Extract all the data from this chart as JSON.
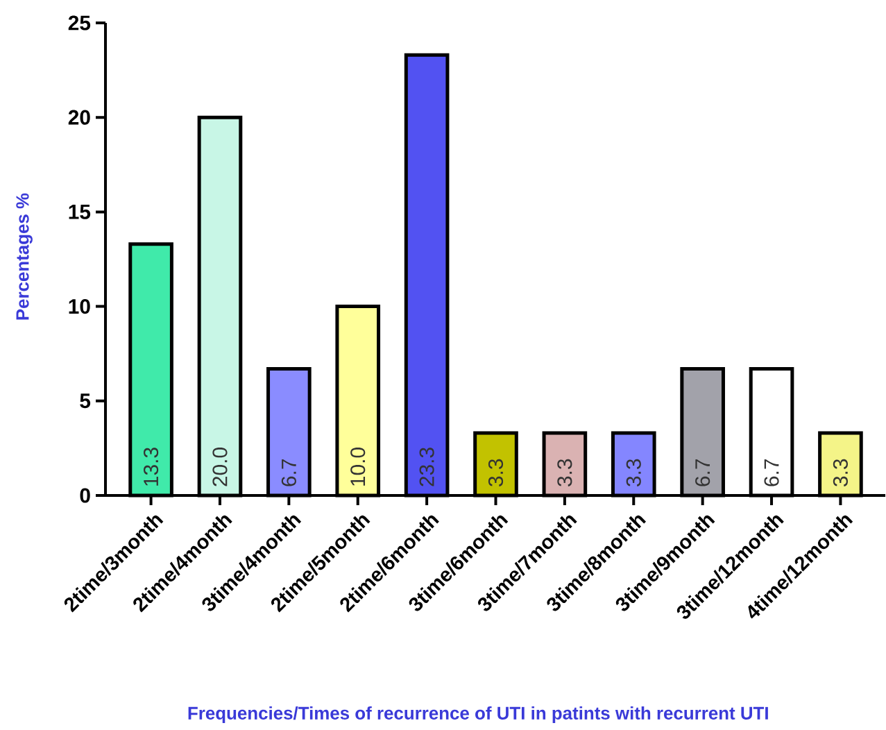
{
  "chart_data": {
    "type": "bar",
    "xlabel": "Frequencies/Times of recurrence of UTI in patints with recurrent UTI",
    "ylabel": "Percentages %",
    "categories": [
      "2time/3month",
      "2time/4month",
      "3time/4month",
      "2time/5month",
      "2time/6month",
      "3time/6month",
      "3time/7month",
      "3time/8month",
      "3time/9month",
      "3time/12month",
      "4time/12month"
    ],
    "values": [
      13.3,
      20.0,
      6.7,
      10.0,
      23.3,
      3.3,
      3.3,
      3.3,
      6.7,
      6.7,
      3.3
    ],
    "value_labels": [
      "13.3",
      "20.0",
      "6.7",
      "10.0",
      "23.3",
      "3.3",
      "3.3",
      "3.3",
      "6.7",
      "6.7",
      "3.3"
    ],
    "colors": [
      "#40eaaa",
      "#c8f6e6",
      "#8a8cff",
      "#ffff9a",
      "#5252f2",
      "#c2c200",
      "#dab2b2",
      "#8486ff",
      "#a2a2aa",
      "#ffffff",
      "#f4f488"
    ],
    "ylim": [
      0,
      25
    ],
    "yticks": [
      0,
      5,
      10,
      15,
      20,
      25
    ]
  }
}
